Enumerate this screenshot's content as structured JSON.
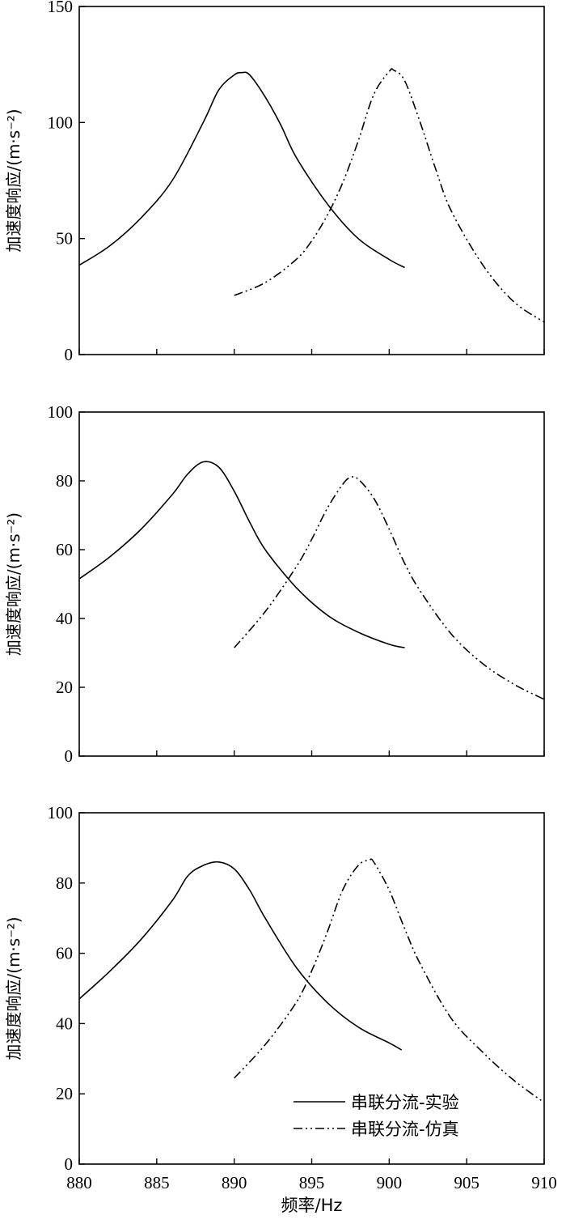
{
  "chart_data": [
    {
      "type": "line",
      "ylabel": "加速度响应/(m·s⁻²)",
      "xlabel": "",
      "xlim": [
        880,
        910
      ],
      "ylim": [
        0,
        150
      ],
      "xticks": [
        880,
        885,
        890,
        895,
        900,
        905,
        910
      ],
      "yticks": [
        0,
        50,
        100,
        150
      ],
      "series": [
        {
          "style": "solid",
          "x": [
            880,
            882,
            884,
            886,
            888,
            889,
            890,
            890.5,
            891,
            892,
            893,
            894,
            896,
            898,
            900,
            901
          ],
          "y": [
            38.5,
            47,
            59,
            75,
            100,
            114,
            120.5,
            121.5,
            120.5,
            111,
            99,
            85,
            65,
            50,
            41,
            37.5
          ]
        },
        {
          "style": "dashdot",
          "x": [
            890,
            892,
            894,
            895,
            896,
            897,
            898,
            899,
            900,
            900.3,
            901,
            902,
            903,
            904,
            906,
            908,
            910
          ],
          "y": [
            25.5,
            31,
            41,
            49,
            60,
            74,
            92,
            112,
            122,
            122.5,
            118,
            100,
            80,
            62,
            39,
            23,
            14
          ]
        }
      ]
    },
    {
      "type": "line",
      "ylabel": "加速度响应/(m·s⁻²)",
      "xlabel": "",
      "xlim": [
        880,
        910
      ],
      "ylim": [
        0,
        100
      ],
      "xticks": [
        880,
        885,
        890,
        895,
        900,
        905,
        910
      ],
      "yticks": [
        0,
        20,
        40,
        60,
        80,
        100
      ],
      "series": [
        {
          "style": "solid",
          "x": [
            880,
            882,
            884,
            886,
            887,
            888,
            889,
            890,
            891,
            892,
            894,
            896,
            898,
            900,
            901
          ],
          "y": [
            51.5,
            58,
            66,
            76,
            82,
            85.5,
            84,
            77,
            68,
            60,
            49,
            41,
            36,
            32.5,
            31.5
          ]
        },
        {
          "style": "dashdot",
          "x": [
            890,
            892,
            894,
            895,
            896,
            897,
            897.5,
            898,
            899,
            900,
            901,
            902,
            904,
            906,
            908,
            910
          ],
          "y": [
            31.5,
            42,
            55,
            63,
            72,
            79,
            81,
            80.5,
            75,
            66,
            56,
            48,
            35.5,
            27,
            21,
            16.5
          ]
        }
      ]
    },
    {
      "type": "line",
      "ylabel": "加速度响应/(m·s⁻²)",
      "xlabel": "频率/Hz",
      "xlim": [
        880,
        910
      ],
      "ylim": [
        0,
        100
      ],
      "xticks": [
        880,
        885,
        890,
        895,
        900,
        905,
        910
      ],
      "yticks": [
        0,
        20,
        40,
        60,
        80,
        100
      ],
      "legend": {
        "position": "bottom-right",
        "entries": [
          "串联分流-实验",
          "串联分流-仿真"
        ]
      },
      "series": [
        {
          "name": "串联分流-实验",
          "style": "solid",
          "x": [
            880,
            882,
            884,
            886,
            887,
            888,
            889,
            890,
            891,
            892,
            894,
            896,
            898,
            900,
            900.8
          ],
          "y": [
            47,
            55,
            64,
            75,
            82,
            85,
            86,
            84,
            78,
            70,
            56,
            46,
            39,
            34.5,
            32.5
          ]
        },
        {
          "name": "串联分流-仿真",
          "style": "dashdot",
          "x": [
            890,
            892,
            894,
            895,
            896,
            897,
            898,
            898.7,
            899,
            900,
            901,
            902,
            904,
            906,
            908,
            910
          ],
          "y": [
            24.5,
            34,
            46,
            55,
            66,
            78,
            85,
            86.5,
            86,
            78,
            67,
            57,
            41.5,
            32,
            24,
            17.5
          ]
        }
      ]
    }
  ]
}
